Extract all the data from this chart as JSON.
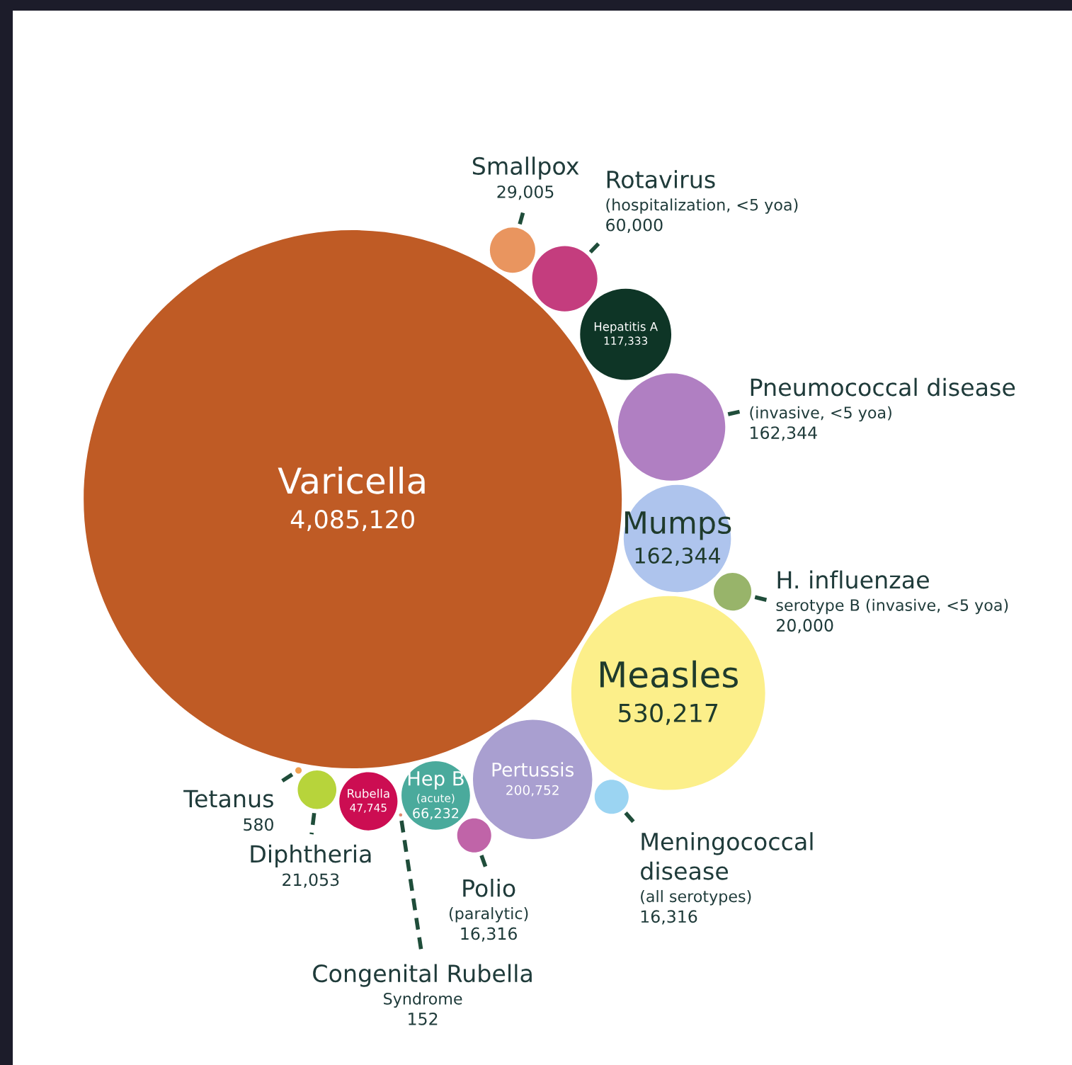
{
  "chart_data": {
    "type": "other",
    "categories": [
      "Varicella",
      "Smallpox",
      "Rotavirus\n(hospitalization, <5 yoa)",
      "Hepatitis A",
      "Pneumococcal disease\n(invasive, <5 yoa)",
      "Mumps",
      "H. influenzae\nserotype B (invasive, <5 yoa)",
      "Measles",
      "Meningococcal\ndisease\n(all serotypes)",
      "Pertussis",
      "Polio\n(paralytic)",
      "Hep B\n(acute)",
      "Congenital Rubella\nSyndrome",
      "Rubella",
      "Diphtheria",
      "Tetanus"
    ],
    "values": [
      4085120,
      29005,
      60000,
      117333,
      162344,
      162344,
      20000,
      530217,
      16316,
      200752,
      16316,
      66232,
      152,
      47745,
      21053,
      580
    ],
    "colors": [
      "#bf5b25",
      "#e9955f",
      "#c43d7e",
      "#0e3526",
      "#b07fc2",
      "#aec4ed",
      "#98b46a",
      "#fcef8a",
      "#9bd4f2",
      "#a99fd0",
      "#c064a8",
      "#4aaa9c",
      "#e08a70",
      "#cc0d52",
      "#b7d43b",
      "#f0a050"
    ],
    "value_labels": [
      "4,085,120",
      "29,005",
      "60,000",
      "117,333",
      "162,344",
      "162,344",
      "20,000",
      "530,217",
      "16,316",
      "200,752",
      "16,316",
      "66,232",
      "152",
      "47,745",
      "21,053",
      "580"
    ]
  }
}
